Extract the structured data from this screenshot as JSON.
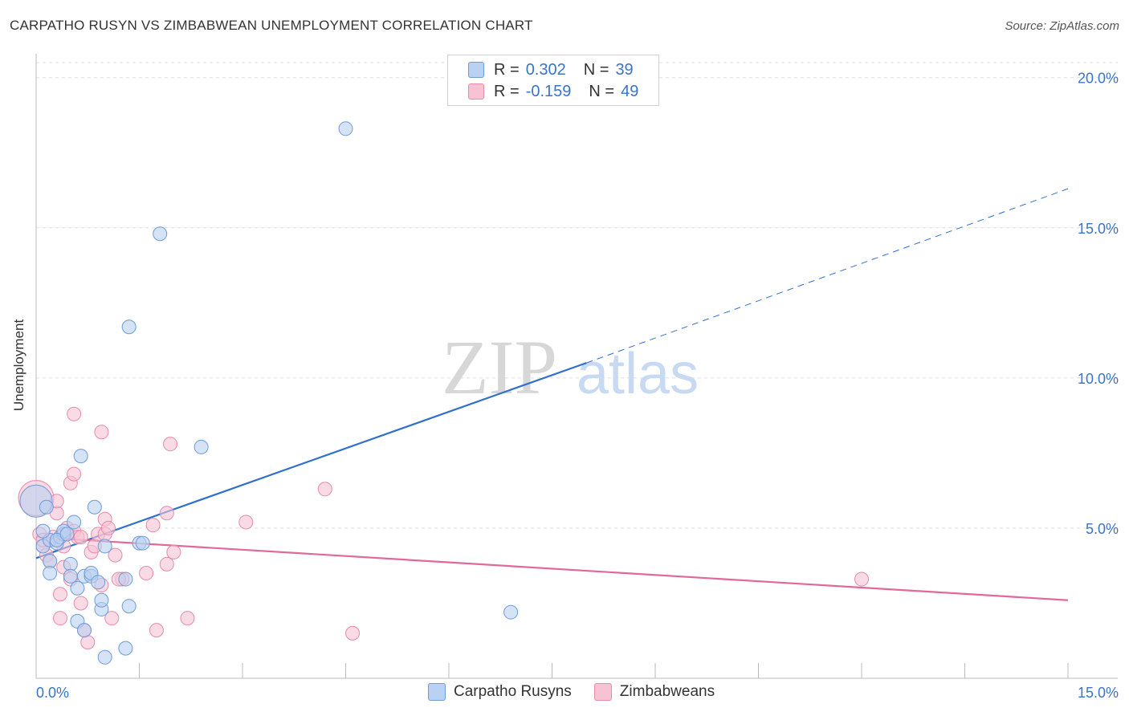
{
  "header": {
    "title": "CARPATHO RUSYN VS ZIMBABWEAN UNEMPLOYMENT CORRELATION CHART",
    "source": "Source: ZipAtlas.com"
  },
  "legend": {
    "row1": {
      "r_label": "R =",
      "r_value": "0.302",
      "n_label": "N =",
      "n_value": "39"
    },
    "row2": {
      "r_label": "R =",
      "r_value": "-0.159",
      "n_label": "N =",
      "n_value": "49"
    },
    "series1_name": "Carpatho Rusyns",
    "series2_name": "Zimbabweans"
  },
  "watermark": {
    "zip": "ZIP",
    "atlas": "atlas"
  },
  "colors": {
    "blue_fill": "#b9d1f2",
    "blue_stroke": "#6f9bd8",
    "blue_line": "#2f6fcd",
    "pink_fill": "#f7c3d3",
    "pink_stroke": "#e88aa8",
    "pink_line": "#e0699a",
    "tick_text": "#3a74c7",
    "grid": "#dddddd"
  },
  "chart_data": {
    "type": "scatter",
    "title": "CARPATHO RUSYN VS ZIMBABWEAN UNEMPLOYMENT CORRELATION CHART",
    "xlabel": "",
    "ylabel": "Unemployment",
    "xlim": [
      0,
      15
    ],
    "ylim": [
      0,
      20.5
    ],
    "x_tick_labels": [
      "0.0%",
      "15.0%"
    ],
    "y_ticks": [
      5,
      10,
      15,
      20
    ],
    "y_tick_labels": [
      "5.0%",
      "10.0%",
      "15.0%",
      "20.0%"
    ],
    "grid": true,
    "legend_position": "top-center",
    "series": [
      {
        "name": "Carpatho Rusyns",
        "r": 0.302,
        "n": 39,
        "trend": {
          "x_start": 0,
          "y_start": 4.0,
          "x_end": 8.0,
          "y_end": 10.5,
          "dash_to_x": 15.0,
          "dash_to_y": 16.3
        },
        "points": [
          [
            0.0,
            5.9
          ],
          [
            0.1,
            4.4
          ],
          [
            0.15,
            5.7
          ],
          [
            0.2,
            4.6
          ],
          [
            0.2,
            3.9
          ],
          [
            0.2,
            3.5
          ],
          [
            0.3,
            4.5
          ],
          [
            0.35,
            4.7
          ],
          [
            0.4,
            4.8
          ],
          [
            0.4,
            4.9
          ],
          [
            0.5,
            3.8
          ],
          [
            0.5,
            3.4
          ],
          [
            0.6,
            3.0
          ],
          [
            0.55,
            5.2
          ],
          [
            0.6,
            1.9
          ],
          [
            0.65,
            7.4
          ],
          [
            0.7,
            3.4
          ],
          [
            0.7,
            1.6
          ],
          [
            0.8,
            3.4
          ],
          [
            0.8,
            3.5
          ],
          [
            0.85,
            5.7
          ],
          [
            0.9,
            3.2
          ],
          [
            0.95,
            2.3
          ],
          [
            0.95,
            2.6
          ],
          [
            1.0,
            4.4
          ],
          [
            1.0,
            0.7
          ],
          [
            1.3,
            3.3
          ],
          [
            1.3,
            1.0
          ],
          [
            1.35,
            2.4
          ],
          [
            1.35,
            11.7
          ],
          [
            1.5,
            4.5
          ],
          [
            1.55,
            4.5
          ],
          [
            1.8,
            14.8
          ],
          [
            2.4,
            7.7
          ],
          [
            4.5,
            18.3
          ],
          [
            6.9,
            2.2
          ],
          [
            0.1,
            4.9
          ],
          [
            0.3,
            4.6
          ],
          [
            0.45,
            4.8
          ]
        ]
      },
      {
        "name": "Zimbabweans",
        "r": -0.159,
        "n": 49,
        "trend": {
          "x_start": 0,
          "y_start": 4.7,
          "x_end": 15.0,
          "y_end": 2.6
        },
        "points": [
          [
            0.0,
            6.0
          ],
          [
            0.05,
            4.8
          ],
          [
            0.1,
            4.4
          ],
          [
            0.1,
            4.6
          ],
          [
            0.15,
            4.1
          ],
          [
            0.2,
            4.6
          ],
          [
            0.2,
            3.9
          ],
          [
            0.25,
            4.7
          ],
          [
            0.3,
            5.5
          ],
          [
            0.3,
            5.9
          ],
          [
            0.35,
            2.8
          ],
          [
            0.35,
            2.0
          ],
          [
            0.4,
            3.7
          ],
          [
            0.45,
            5.0
          ],
          [
            0.5,
            6.5
          ],
          [
            0.5,
            3.3
          ],
          [
            0.55,
            4.9
          ],
          [
            0.55,
            6.8
          ],
          [
            0.55,
            8.8
          ],
          [
            0.6,
            4.7
          ],
          [
            0.65,
            2.5
          ],
          [
            0.7,
            1.6
          ],
          [
            0.75,
            1.2
          ],
          [
            0.8,
            4.2
          ],
          [
            0.85,
            4.4
          ],
          [
            0.9,
            4.8
          ],
          [
            0.95,
            8.2
          ],
          [
            0.95,
            3.1
          ],
          [
            1.0,
            4.8
          ],
          [
            1.0,
            5.3
          ],
          [
            1.05,
            5.0
          ],
          [
            1.1,
            2.0
          ],
          [
            1.15,
            4.1
          ],
          [
            1.25,
            3.3
          ],
          [
            1.6,
            3.5
          ],
          [
            1.7,
            5.1
          ],
          [
            1.75,
            1.6
          ],
          [
            1.9,
            5.5
          ],
          [
            1.9,
            3.8
          ],
          [
            1.95,
            7.8
          ],
          [
            2.0,
            4.2
          ],
          [
            2.2,
            2.0
          ],
          [
            3.05,
            5.2
          ],
          [
            4.2,
            6.3
          ],
          [
            4.6,
            1.5
          ],
          [
            12.0,
            3.3
          ],
          [
            0.4,
            4.4
          ],
          [
            0.65,
            4.7
          ],
          [
            1.2,
            3.3
          ]
        ]
      }
    ]
  }
}
